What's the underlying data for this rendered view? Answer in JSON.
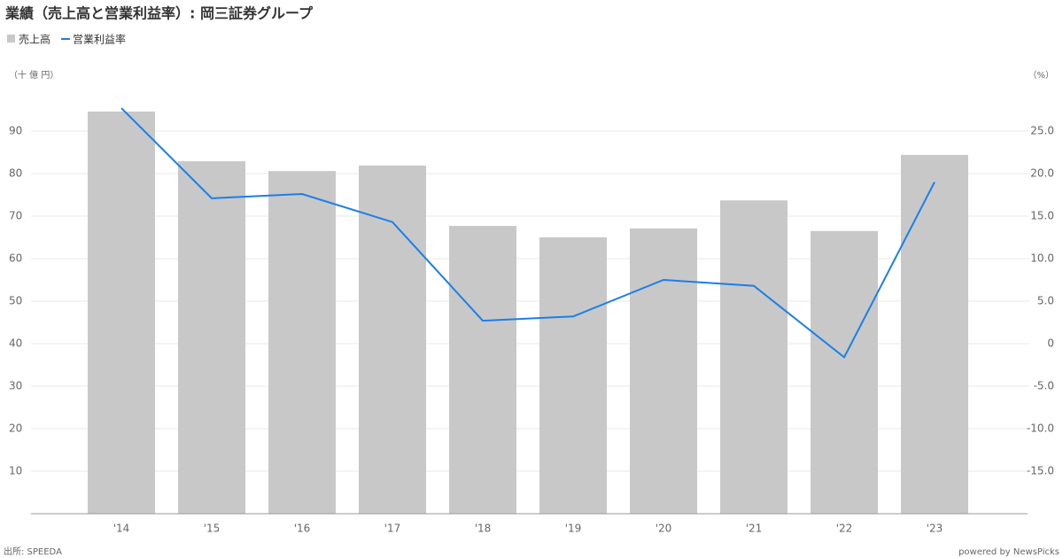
{
  "chart_data": {
    "type": "bar",
    "title": "業績（売上高と営業利益率）: 岡三証券グループ",
    "y_unit": "（十 億 円）",
    "y2_unit": "（%）",
    "categories": [
      "'14",
      "'15",
      "'16",
      "'17",
      "'18",
      "'19",
      "'20",
      "'21",
      "'22",
      "'23"
    ],
    "series": [
      {
        "name": "売上高",
        "type": "bar",
        "color": "#c8c8c8",
        "values": [
          94.6,
          82.9,
          80.6,
          81.9,
          67.7,
          65.0,
          67.1,
          73.7,
          66.5,
          84.4
        ]
      },
      {
        "name": "営業利益率",
        "type": "line",
        "axis": "y2",
        "color": "#1a7fe8",
        "values": [
          27.7,
          17.1,
          17.6,
          14.3,
          2.7,
          3.2,
          7.5,
          6.8,
          -1.6,
          19.0
        ]
      }
    ],
    "ylim": [
      0,
      100
    ],
    "yticks": [
      10,
      20,
      30,
      40,
      50,
      60,
      70,
      80,
      90
    ],
    "y2lim": [
      -20,
      30
    ],
    "y2ticks": [
      {
        "value": -15,
        "label": "-15.0"
      },
      {
        "value": -10,
        "label": "-10.0"
      },
      {
        "value": -5,
        "label": "-5.0"
      },
      0,
      {
        "value": 5,
        "label": "5.0"
      },
      {
        "value": 10,
        "label": "10.0"
      },
      {
        "value": 15,
        "label": "15.0"
      },
      {
        "value": 20,
        "label": "20.0"
      },
      {
        "value": 25,
        "label": "25.0"
      }
    ],
    "grid": true,
    "source": "出所: SPEEDA",
    "credit": "powered by NewsPicks"
  }
}
